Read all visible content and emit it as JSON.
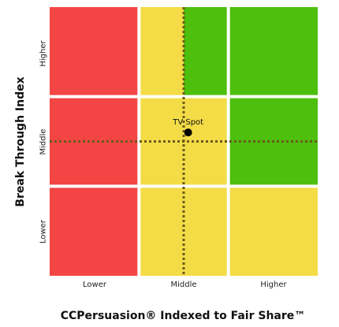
{
  "chart_data": {
    "type": "scatter",
    "title": "",
    "xlabel": "CCPersuasion® Indexed to Fair Share™",
    "ylabel": "Break Through Index",
    "x_categories": [
      "Lower",
      "Middle",
      "Higher"
    ],
    "y_categories": [
      "Lower",
      "Middle",
      "Higher"
    ],
    "xlim": [
      0,
      3
    ],
    "ylim": [
      0,
      3
    ],
    "grid": true,
    "reference_lines": {
      "x": 1.5,
      "y": 1.5
    },
    "points": [
      {
        "label": "TV Spot",
        "x": 1.55,
        "y": 1.6
      }
    ],
    "zones": [
      {
        "x": [
          0,
          1
        ],
        "y": [
          0,
          3
        ],
        "color": "#f44545"
      },
      {
        "x": [
          1,
          2
        ],
        "y": [
          0,
          2
        ],
        "color": "#f3dc46"
      },
      {
        "x": [
          1,
          1.5
        ],
        "y": [
          2,
          3
        ],
        "color": "#f3dc46"
      },
      {
        "x": [
          1.5,
          2
        ],
        "y": [
          2,
          3
        ],
        "color": "#4dbf0c"
      },
      {
        "x": [
          2,
          3
        ],
        "y": [
          1,
          3
        ],
        "color": "#4dbf0c"
      },
      {
        "x": [
          2,
          3
        ],
        "y": [
          0,
          1
        ],
        "color": "#f3dc46"
      }
    ],
    "colors": {
      "red": "#f44545",
      "yellow": "#f3dc46",
      "green": "#4dbf0c",
      "point": "#000000",
      "reference": "#6b5a1e"
    }
  }
}
